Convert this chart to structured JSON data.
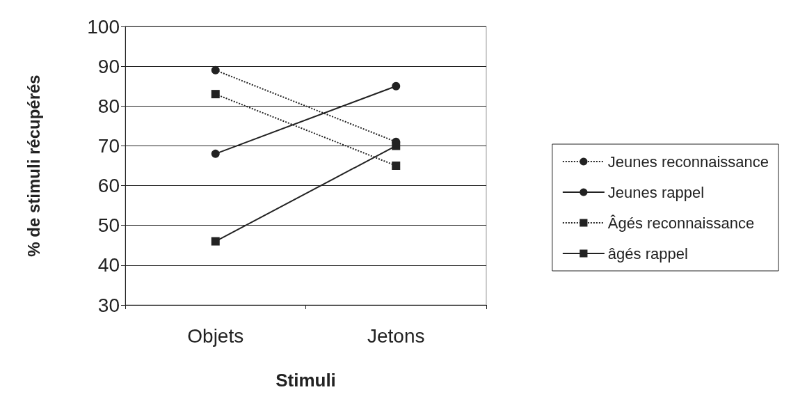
{
  "chart_data": {
    "type": "line",
    "xlabel": "Stimuli",
    "ylabel": "% de stimuli récupérés",
    "categories": [
      "Objets",
      "Jetons"
    ],
    "series": [
      {
        "name": "Jeunes reconnaissance",
        "color": "#222222",
        "values": [
          89,
          71
        ],
        "marker": "circle",
        "line_style": "dotted"
      },
      {
        "name": "Jeunes rappel",
        "color": "#222222",
        "values": [
          68,
          85
        ],
        "marker": "circle",
        "line_style": "solid"
      },
      {
        "name": "Âgés reconnaissance",
        "color": "#222222",
        "values": [
          83,
          65
        ],
        "marker": "square",
        "line_style": "dotted"
      },
      {
        "name": "âgés rappel",
        "color": "#222222",
        "values": [
          46,
          70
        ],
        "marker": "square",
        "line_style": "solid"
      }
    ],
    "ylim": [
      30,
      100
    ],
    "yticks": [
      30,
      40,
      50,
      60,
      70,
      80,
      90,
      100
    ],
    "grid": "y",
    "legend": "right"
  }
}
